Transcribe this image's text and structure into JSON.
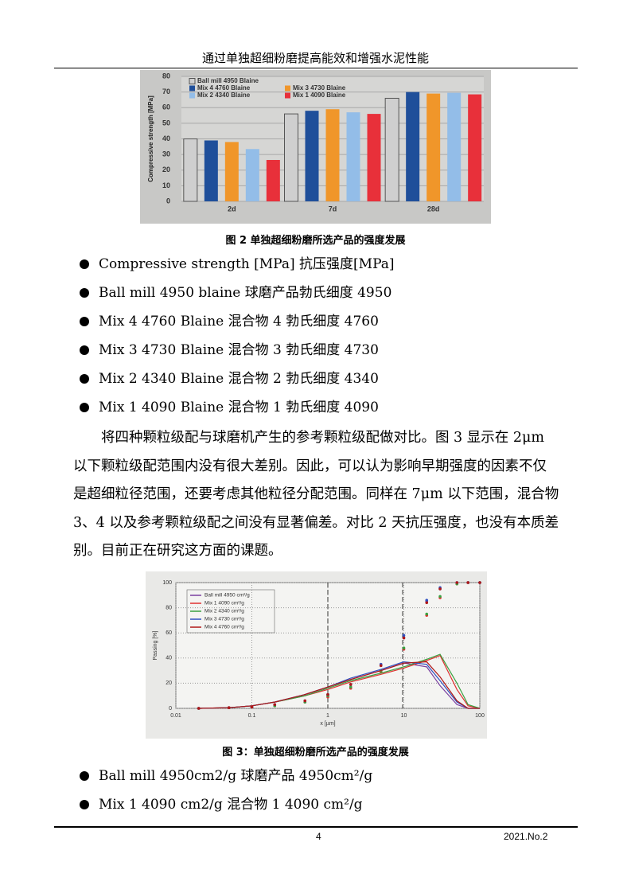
{
  "header": {
    "title": "通过单独超细粉磨提高能效和增强水泥性能"
  },
  "chart_data": [
    {
      "type": "bar",
      "caption": "图 2  单独超细粉磨所选产品的强度发展",
      "y_label": "Compressive strength [MPa]",
      "categories": [
        "2d",
        "7d",
        "28d"
      ],
      "series": [
        {
          "name": "Ball mill 4950 Blaine",
          "color": "#cfcfcf",
          "values": [
            40,
            56,
            66
          ]
        },
        {
          "name": "Mix 4 4760 Blaine",
          "color": "#1f4f9a",
          "values": [
            39,
            58,
            70
          ]
        },
        {
          "name": "Mix 3 4730 Blaine",
          "color": "#f0962a",
          "values": [
            38,
            59,
            69
          ]
        },
        {
          "name": "Mix 2 4340 Blaine",
          "color": "#93bde8",
          "values": [
            33.5,
            57,
            69.5
          ]
        },
        {
          "name": "Mix 1 4090 Blaine",
          "color": "#e8303a",
          "values": [
            26.5,
            56,
            68.5
          ]
        }
      ],
      "ylim": [
        0,
        80
      ],
      "yticks": [
        0,
        10,
        20,
        30,
        40,
        50,
        60,
        70,
        80
      ],
      "grid": true
    },
    {
      "type": "line",
      "caption": "图 3：单独超细粉磨所选产品的强度发展",
      "x_label": "x [µm]",
      "y_label": "Passing [%]",
      "log_x": true,
      "x": [
        0.02,
        0.05,
        0.1,
        0.2,
        0.5,
        1,
        2,
        5,
        10,
        20,
        30,
        50,
        70,
        100
      ],
      "series": [
        {
          "name": "Ball mill 4950 cm²/g",
          "color": "#7a3fa0",
          "values": [
            0,
            0.5,
            2,
            5,
            11,
            17,
            23,
            30,
            36,
            33,
            18,
            3,
            0,
            0
          ],
          "cumulative": [
            0,
            0.5,
            1,
            3,
            6,
            11,
            19,
            34,
            56,
            85,
            95,
            100,
            100,
            100
          ]
        },
        {
          "name": "Mix 1 4090 cm²/g",
          "color": "#e03030",
          "values": [
            0,
            0.5,
            2,
            5,
            10,
            15,
            21,
            27,
            32,
            38,
            42,
            15,
            2,
            0
          ],
          "cumulative": [
            0,
            0.5,
            1,
            2,
            5,
            9,
            16,
            29,
            47,
            74,
            88,
            99,
            100,
            100
          ]
        },
        {
          "name": "Mix 2 4340 cm²/g",
          "color": "#3aa040",
          "values": [
            0,
            0.5,
            2,
            5,
            10,
            16,
            22,
            28,
            33,
            39,
            43,
            20,
            3,
            0
          ],
          "cumulative": [
            0,
            0.5,
            1,
            2,
            5,
            10,
            17,
            30,
            48,
            75,
            89,
            99,
            100,
            100
          ]
        },
        {
          "name": "Mix 3 4730 cm²/g",
          "color": "#3050c0",
          "values": [
            0,
            0.5,
            2,
            5,
            11,
            17,
            24,
            31,
            37,
            35,
            22,
            5,
            0,
            0
          ],
          "cumulative": [
            0,
            0.5,
            1,
            3,
            6,
            11,
            19,
            35,
            58,
            86,
            96,
            100,
            100,
            100
          ]
        },
        {
          "name": "Mix 4 4760 cm²/g",
          "color": "#b01818",
          "values": [
            0,
            0.5,
            2,
            5,
            11,
            17,
            23,
            30,
            36,
            37,
            25,
            6,
            0,
            0
          ],
          "cumulative": [
            0,
            0.5,
            1,
            3,
            6,
            11,
            19,
            34,
            56,
            84,
            95,
            100,
            100,
            100
          ]
        }
      ],
      "xlim": [
        0.01,
        100
      ],
      "xticks": [
        0.01,
        0.1,
        1,
        10,
        100
      ],
      "ylim": [
        0,
        100
      ],
      "yticks": [
        0,
        20,
        40,
        60,
        80,
        100
      ],
      "grid": true
    }
  ],
  "bullets_1": [
    "Compressive strength [MPa]  抗压强度[MPa]",
    "Ball mill 4950 blaine  球磨产品勃氏细度 4950",
    "Mix 4 4760 Blaine  混合物 4  勃氏细度 4760",
    "Mix 3 4730 Blaine  混合物 3  勃氏细度  4730",
    "Mix 2 4340 Blaine  混合物 2  勃氏细度  4340",
    "Mix 1 4090 Blaine  混合物  1 勃氏细度  4090"
  ],
  "paragraph": "将四种颗粒级配与球磨机产生的参考颗粒级配做对比。图 3 显示在 2μm 以下颗粒级配范围内没有很大差别。因此，可以认为影响早期强度的因素不仅是超细粒径范围，还要考虑其他粒径分配范围。同样在 7μm 以下范围，混合物 3、4 以及参考颗粒级配之间没有显著偏差。对比 2 天抗压强度，也没有本质差别。目前正在研究这方面的课题。",
  "bullets_2": [
    "Ball mill 4950cm2/g    球磨产品 4950cm²/g",
    "Mix 1 4090 cm2/g  混合物 1 4090 cm²/g"
  ],
  "footer": {
    "page": "4",
    "issue": "2021.No.2"
  }
}
